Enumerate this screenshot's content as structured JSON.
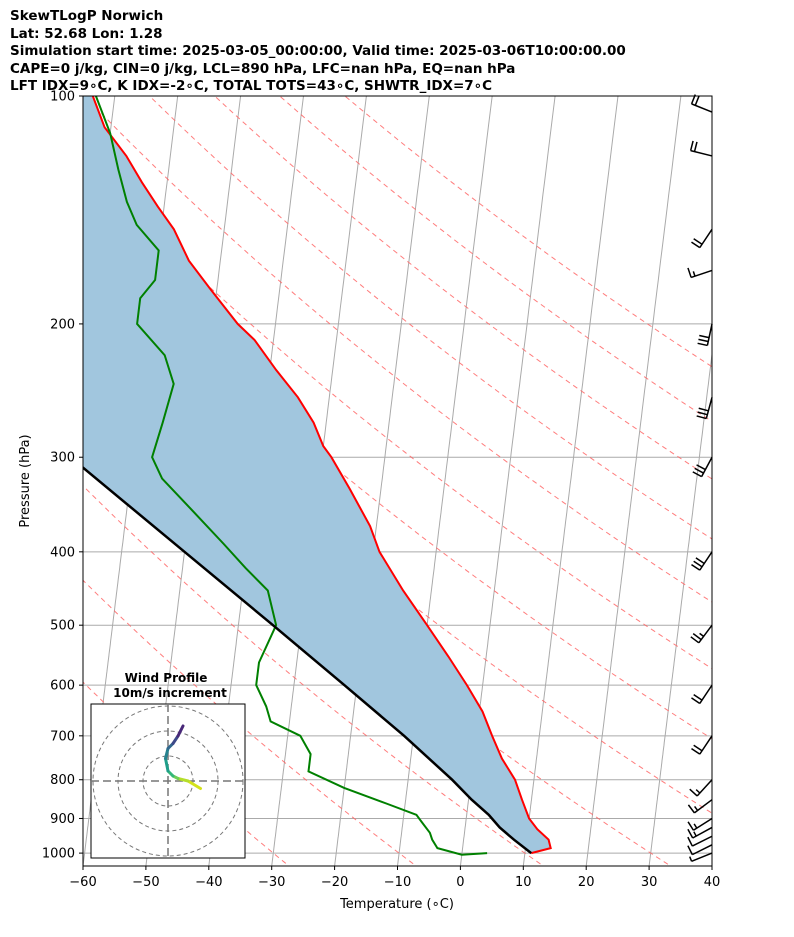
{
  "header": {
    "line1": "SkewTLogP Norwich",
    "line2": "Lat: 52.68   Lon: 1.28",
    "line3": "Simulation start time: 2025-03-05_00:00:00, Valid time: 2025-03-06T10:00:00.00",
    "line4": "CAPE=0 j/kg, CIN=0 j/kg, LCL=890 hPa, LFC=nan hPa, EQ=nan hPa",
    "line5": "LFT IDX=9∘C, K IDX=-2∘C, TOTAL TOTS=43∘C, SHWTR_IDX=7∘C"
  },
  "chart_data": {
    "type": "skewt-logp",
    "xlabel": "Temperature (∘C)",
    "ylabel": "Pressure (hPa)",
    "xlim": [
      -60,
      40
    ],
    "ylim": [
      1040,
      100
    ],
    "x_ticks": [
      "−60",
      "−50",
      "−40",
      "−30",
      "−20",
      "−10",
      "0",
      "10",
      "20",
      "30",
      "40"
    ],
    "x_tick_values": [
      -60,
      -50,
      -40,
      -30,
      -20,
      -10,
      0,
      10,
      20,
      30,
      40
    ],
    "y_ticks": [
      "100",
      "200",
      "300",
      "400",
      "500",
      "600",
      "700",
      "800",
      "900",
      "1000"
    ],
    "y_tick_values": [
      100,
      200,
      300,
      400,
      500,
      600,
      700,
      800,
      900,
      1000
    ],
    "series": [
      {
        "role": "temperature",
        "color": "#ff0000",
        "points": [
          [
            1000,
            11
          ],
          [
            985,
            14
          ],
          [
            960,
            13.5
          ],
          [
            930,
            11.5
          ],
          [
            900,
            10
          ],
          [
            850,
            8.5
          ],
          [
            800,
            7
          ],
          [
            750,
            4.5
          ],
          [
            700,
            2.5
          ],
          [
            650,
            0.5
          ],
          [
            600,
            -2.5
          ],
          [
            550,
            -6
          ],
          [
            500,
            -10
          ],
          [
            450,
            -14.5
          ],
          [
            400,
            -19
          ],
          [
            370,
            -21
          ],
          [
            330,
            -25
          ],
          [
            300,
            -28.5
          ],
          [
            290,
            -30
          ],
          [
            270,
            -32
          ],
          [
            250,
            -35
          ],
          [
            230,
            -39
          ],
          [
            210,
            -43
          ],
          [
            200,
            -46
          ],
          [
            180,
            -51
          ],
          [
            165,
            -55
          ],
          [
            150,
            -58
          ],
          [
            140,
            -61
          ],
          [
            130,
            -64
          ],
          [
            120,
            -67
          ],
          [
            110,
            -71
          ],
          [
            100,
            -73.5
          ]
        ]
      },
      {
        "role": "dewpoint",
        "color": "#008000",
        "points": [
          [
            1000,
            4
          ],
          [
            1005,
            0
          ],
          [
            985,
            -4
          ],
          [
            960,
            -5
          ],
          [
            940,
            -5.5
          ],
          [
            910,
            -7
          ],
          [
            890,
            -8
          ],
          [
            860,
            -13
          ],
          [
            820,
            -20
          ],
          [
            780,
            -26
          ],
          [
            740,
            -26
          ],
          [
            700,
            -28
          ],
          [
            670,
            -33
          ],
          [
            640,
            -34
          ],
          [
            600,
            -36
          ],
          [
            560,
            -36
          ],
          [
            500,
            -34
          ],
          [
            450,
            -36
          ],
          [
            420,
            -40
          ],
          [
            390,
            -44
          ],
          [
            350,
            -50
          ],
          [
            320,
            -55
          ],
          [
            300,
            -57
          ],
          [
            270,
            -56
          ],
          [
            240,
            -55
          ],
          [
            220,
            -57
          ],
          [
            200,
            -62
          ],
          [
            185,
            -62
          ],
          [
            175,
            -60
          ],
          [
            160,
            -60
          ],
          [
            148,
            -64
          ],
          [
            138,
            -66
          ],
          [
            125,
            -68
          ],
          [
            112,
            -70
          ],
          [
            100,
            -73
          ]
        ]
      },
      {
        "role": "parcel",
        "color": "#000000",
        "points": [
          [
            1000,
            11
          ],
          [
            960,
            8
          ],
          [
            925,
            5.5
          ],
          [
            890,
            3.5
          ],
          [
            850,
            0.5
          ],
          [
            800,
            -3
          ],
          [
            700,
            -11.5
          ],
          [
            600,
            -22
          ],
          [
            500,
            -34.5
          ],
          [
            400,
            -50
          ],
          [
            300,
            -70
          ],
          [
            250,
            -84
          ],
          [
            200,
            -100
          ],
          [
            150,
            -122
          ],
          [
            100,
            -155
          ]
        ]
      }
    ],
    "wind_barbs_ms": [
      {
        "p": 1000,
        "u": 5,
        "v": 2
      },
      {
        "p": 975,
        "u": 8,
        "v": 4
      },
      {
        "p": 950,
        "u": 10,
        "v": 5
      },
      {
        "p": 925,
        "u": 11,
        "v": 6
      },
      {
        "p": 900,
        "u": 11,
        "v": 7
      },
      {
        "p": 850,
        "u": 12,
        "v": 9
      },
      {
        "p": 800,
        "u": 11,
        "v": 12
      },
      {
        "p": 700,
        "u": 10,
        "v": 15
      },
      {
        "p": 600,
        "u": 12,
        "v": 18
      },
      {
        "p": 500,
        "u": 15,
        "v": 20
      },
      {
        "p": 400,
        "u": 16,
        "v": 24
      },
      {
        "p": 300,
        "u": 15,
        "v": 28
      },
      {
        "p": 250,
        "u": 8,
        "v": 30
      },
      {
        "p": 200,
        "u": 6,
        "v": 28
      },
      {
        "p": 170,
        "u": 15,
        "v": 5
      },
      {
        "p": 150,
        "u": 12,
        "v": 18
      },
      {
        "p": 120,
        "u": 20,
        "v": -5
      },
      {
        "p": 105,
        "u": 20,
        "v": -8
      }
    ],
    "inset": {
      "title": "Wind Profile",
      "subtitle": "10m/s increment",
      "type": "hodograph",
      "rings_ms": [
        10,
        20,
        30
      ],
      "points": [
        [
          13,
          -3
        ],
        [
          8,
          0
        ],
        [
          4,
          1
        ],
        [
          2,
          2
        ],
        [
          0,
          4
        ],
        [
          -1,
          9
        ],
        [
          0,
          13
        ],
        [
          2,
          15
        ],
        [
          4,
          18
        ],
        [
          6,
          22
        ]
      ]
    }
  },
  "colors": {
    "temperature": "#ff0000",
    "dewpoint": "#008000",
    "parcel": "#000000",
    "cape_fill": "#a1c6de",
    "isotherm": "#aaaaaa",
    "dry_adiabat": "#ff6666",
    "moist_adiabat": "#5566ff",
    "mixing_ratio": "#aa66cc"
  }
}
